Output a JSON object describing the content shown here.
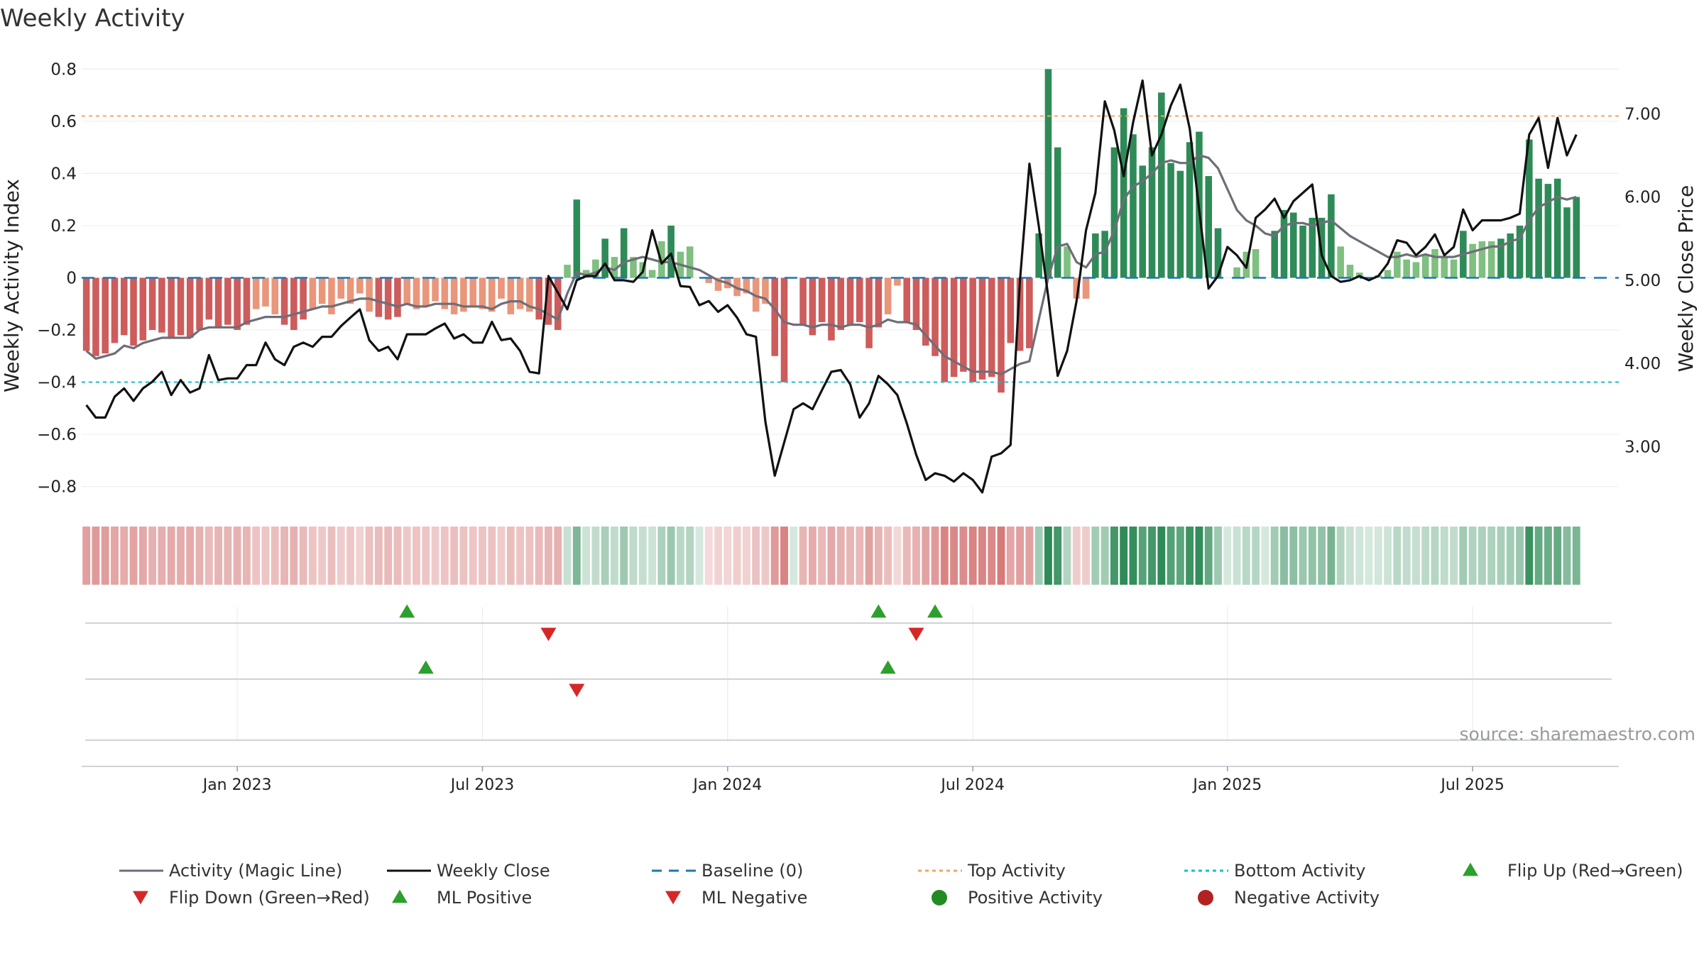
{
  "chart_data": {
    "type": "bar",
    "title": "Weekly Activity",
    "ylabel_left": "Weekly Activity Index",
    "ylabel_right": "Weekly Close Price",
    "ylim_left": [
      -0.88,
      0.82
    ],
    "yticks_left": [
      -0.8,
      -0.6,
      -0.4,
      -0.2,
      0,
      0.2,
      0.4,
      0.6,
      0.8
    ],
    "ytick_labels_left": [
      "−0.8",
      "−0.6",
      "−0.4",
      "−0.2",
      "0",
      "0.2",
      "0.4",
      "0.6",
      "0.8"
    ],
    "ylim_right": [
      2.27,
      7.6
    ],
    "yticks_right": [
      3.0,
      4.0,
      5.0,
      6.0,
      7.0
    ],
    "ytick_labels_right": [
      "3.00",
      "4.00",
      "5.00",
      "6.00",
      "7.00"
    ],
    "x_range_weeks": [
      -16.5,
      146.5
    ],
    "x_tick_weeks": [
      0,
      26,
      52,
      78,
      105,
      131
    ],
    "x_tick_labels": [
      "Jan 2023",
      "Jul 2023",
      "Jan 2024",
      "Jul 2024",
      "Jan 2025",
      "Jul 2025"
    ],
    "top_activity": 0.62,
    "bottom_activity": -0.4,
    "baseline": 0,
    "activity_index": [
      -0.28,
      -0.3,
      -0.29,
      -0.25,
      -0.22,
      -0.26,
      -0.24,
      -0.2,
      -0.21,
      -0.23,
      -0.22,
      -0.23,
      -0.2,
      -0.16,
      -0.19,
      -0.18,
      -0.2,
      -0.18,
      -0.12,
      -0.11,
      -0.14,
      -0.18,
      -0.2,
      -0.16,
      -0.12,
      -0.1,
      -0.14,
      -0.08,
      -0.1,
      -0.06,
      -0.13,
      -0.15,
      -0.16,
      -0.15,
      -0.1,
      -0.12,
      -0.11,
      -0.09,
      -0.12,
      -0.14,
      -0.13,
      -0.11,
      -0.12,
      -0.13,
      -0.08,
      -0.14,
      -0.12,
      -0.13,
      -0.16,
      -0.18,
      -0.2,
      0.05,
      0.3,
      0.03,
      0.07,
      0.15,
      0.08,
      0.19,
      0.08,
      0.06,
      0.03,
      0.14,
      0.2,
      0.1,
      0.12,
      0.0,
      -0.02,
      -0.05,
      -0.04,
      -0.07,
      -0.06,
      -0.13,
      -0.1,
      -0.3,
      -0.4,
      0.0,
      -0.18,
      -0.22,
      -0.17,
      -0.24,
      -0.2,
      -0.18,
      -0.17,
      -0.27,
      -0.19,
      -0.14,
      -0.03,
      -0.17,
      -0.2,
      -0.26,
      -0.3,
      -0.4,
      -0.38,
      -0.36,
      -0.4,
      -0.39,
      -0.38,
      -0.44,
      -0.25,
      -0.28,
      -0.27,
      0.17,
      0.8,
      0.5,
      0.12,
      -0.08,
      -0.08,
      0.17,
      0.18,
      0.5,
      0.65,
      0.55,
      0.43,
      0.5,
      0.71,
      0.44,
      0.41,
      0.52,
      0.56,
      0.39,
      0.19,
      0.0,
      0.04,
      0.1,
      0.11,
      0.0,
      0.18,
      0.26,
      0.25,
      0.2,
      0.23,
      0.23,
      0.32,
      0.12,
      0.05,
      0.02,
      0.0,
      0.01,
      0.03,
      0.1,
      0.07,
      0.06,
      0.09,
      0.11,
      0.08,
      0.07,
      0.18,
      0.13,
      0.14,
      0.14,
      0.15,
      0.17,
      0.2,
      0.53,
      0.38,
      0.36,
      0.38,
      0.27,
      0.31
    ],
    "magic_line": [
      -0.28,
      -0.31,
      -0.3,
      -0.29,
      -0.26,
      -0.27,
      -0.25,
      -0.24,
      -0.23,
      -0.23,
      -0.23,
      -0.23,
      -0.2,
      -0.19,
      -0.19,
      -0.19,
      -0.19,
      -0.17,
      -0.16,
      -0.15,
      -0.15,
      -0.15,
      -0.14,
      -0.13,
      -0.12,
      -0.11,
      -0.11,
      -0.1,
      -0.09,
      -0.08,
      -0.08,
      -0.09,
      -0.1,
      -0.11,
      -0.1,
      -0.11,
      -0.11,
      -0.1,
      -0.1,
      -0.1,
      -0.11,
      -0.11,
      -0.11,
      -0.12,
      -0.1,
      -0.09,
      -0.09,
      -0.11,
      -0.12,
      -0.14,
      -0.16,
      -0.06,
      0.02,
      0.01,
      0.02,
      0.04,
      0.03,
      0.06,
      0.07,
      0.08,
      0.07,
      0.06,
      0.06,
      0.05,
      0.04,
      0.03,
      0.01,
      -0.01,
      -0.02,
      -0.04,
      -0.05,
      -0.07,
      -0.08,
      -0.12,
      -0.17,
      -0.18,
      -0.18,
      -0.19,
      -0.18,
      -0.18,
      -0.19,
      -0.18,
      -0.18,
      -0.19,
      -0.18,
      -0.16,
      -0.17,
      -0.17,
      -0.18,
      -0.22,
      -0.26,
      -0.3,
      -0.32,
      -0.34,
      -0.36,
      -0.36,
      -0.36,
      -0.37,
      -0.35,
      -0.33,
      -0.32,
      -0.16,
      0.0,
      0.12,
      0.13,
      0.06,
      0.04,
      0.09,
      0.1,
      0.18,
      0.3,
      0.35,
      0.37,
      0.4,
      0.44,
      0.45,
      0.44,
      0.44,
      0.47,
      0.46,
      0.42,
      0.34,
      0.26,
      0.22,
      0.2,
      0.17,
      0.16,
      0.2,
      0.21,
      0.21,
      0.2,
      0.21,
      0.22,
      0.19,
      0.16,
      0.14,
      0.12,
      0.1,
      0.08,
      0.08,
      0.09,
      0.08,
      0.09,
      0.08,
      0.08,
      0.08,
      0.09,
      0.1,
      0.11,
      0.12,
      0.12,
      0.14,
      0.15,
      0.22,
      0.27,
      0.29,
      0.31,
      0.3,
      0.31
    ],
    "weekly_close": [
      3.5,
      3.35,
      3.35,
      3.6,
      3.7,
      3.55,
      3.7,
      3.78,
      3.9,
      3.62,
      3.8,
      3.65,
      3.7,
      4.1,
      3.8,
      3.82,
      3.82,
      3.98,
      3.98,
      4.25,
      4.05,
      3.98,
      4.2,
      4.25,
      4.2,
      4.32,
      4.32,
      4.45,
      4.55,
      4.65,
      4.28,
      4.15,
      4.2,
      4.05,
      4.35,
      4.35,
      4.35,
      4.42,
      4.48,
      4.3,
      4.35,
      4.25,
      4.25,
      4.5,
      4.28,
      4.3,
      4.15,
      3.9,
      3.88,
      5.05,
      4.85,
      4.65,
      5.0,
      5.05,
      5.05,
      5.2,
      5.0,
      5.0,
      4.98,
      5.1,
      5.6,
      5.2,
      5.32,
      4.93,
      4.92,
      4.7,
      4.75,
      4.62,
      4.7,
      4.55,
      4.35,
      4.32,
      3.3,
      2.65,
      3.05,
      3.45,
      3.52,
      3.45,
      3.68,
      3.9,
      3.92,
      3.75,
      3.35,
      3.52,
      3.85,
      3.75,
      3.62,
      3.28,
      2.9,
      2.6,
      2.68,
      2.65,
      2.58,
      2.68,
      2.6,
      2.45,
      2.88,
      2.92,
      3.02,
      5.0,
      6.4,
      5.65,
      4.8,
      3.85,
      4.15,
      4.75,
      5.6,
      6.05,
      7.15,
      6.8,
      6.25,
      6.9,
      7.4,
      6.5,
      6.75,
      7.1,
      7.35,
      6.82,
      5.85,
      4.9,
      5.05,
      5.4,
      5.3,
      5.15,
      5.75,
      5.85,
      5.98,
      5.75,
      5.95,
      6.05,
      6.15,
      5.3,
      5.05,
      4.98,
      5.0,
      5.05,
      5.0,
      5.05,
      5.2,
      5.48,
      5.45,
      5.3,
      5.4,
      5.55,
      5.3,
      5.4,
      5.85,
      5.6,
      5.72,
      5.72,
      5.72,
      5.75,
      5.8,
      6.75,
      6.95,
      6.35,
      6.95,
      6.5,
      6.75
    ],
    "flip_up_weeks": [
      34,
      84,
      90
    ],
    "flip_down_weeks": [
      49,
      88
    ],
    "ml_positive_weeks": [
      36,
      85
    ],
    "ml_negative_weeks": [
      52
    ],
    "legend": [
      "Activity (Magic Line)",
      "Weekly Close",
      "Baseline (0)",
      "Top Activity",
      "Bottom Activity",
      "Flip Up (Red→Green)",
      "Flip Down (Green→Red)",
      "ML Positive",
      "ML Negative",
      "Positive Activity",
      "Negative Activity"
    ],
    "annotation": "source: sharemaestro.com",
    "colors": {
      "strong_green": "#2e8b57",
      "light_green": "#7fbf7f",
      "strong_red": "#cd5c5c",
      "light_red": "#e9967a",
      "magic_line": "#6e6e78",
      "close": "#111111",
      "baseline": "#1f77b4",
      "top": "#f4a460",
      "bottom": "#17becf",
      "marker_up": "#2ca02c",
      "marker_down": "#d62728",
      "positive_dot": "#228b22",
      "negative_dot": "#b22222"
    }
  }
}
